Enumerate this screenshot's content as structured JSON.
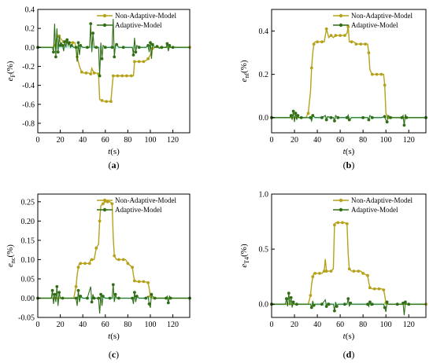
{
  "colors": {
    "non_adaptive": "#b5a21a",
    "adaptive": "#2f6e14",
    "axis": "#000000"
  },
  "chart_data": [
    {
      "type": "line",
      "panel_label": "(a)",
      "ylabel_main": "e",
      "ylabel_sub": "F",
      "ylabel_unit": "(%)",
      "xlabel_main": "t",
      "xlabel_unit": "(s)",
      "xlim": [
        0,
        135
      ],
      "ylim": [
        -0.9,
        0.4
      ],
      "xticks": [
        0,
        20,
        40,
        60,
        80,
        100,
        120
      ],
      "yticks": [
        0.4,
        0.2,
        0.0,
        -0.2,
        -0.4,
        -0.6,
        -0.8
      ],
      "ytick_labels": [
        "0.4",
        "0.2",
        "0.0",
        "-0.2",
        "-0.4",
        "-0.6",
        "-0.8"
      ],
      "legend_position": "top-right",
      "series": [
        {
          "name": "Non-Adaptive-Model",
          "color_key": "non_adaptive",
          "x": [
            0,
            14,
            15,
            17,
            19,
            21,
            23,
            25,
            27,
            29,
            31,
            33,
            35,
            37,
            39,
            41,
            43,
            45,
            47,
            48,
            50,
            52,
            54,
            55,
            57,
            59,
            61,
            63,
            65,
            66,
            67,
            69,
            71,
            73,
            75,
            77,
            79,
            81,
            83,
            85,
            86,
            88,
            90,
            92,
            94,
            96,
            98,
            100,
            102,
            104,
            110,
            120,
            135
          ],
          "y": [
            0,
            0,
            0.02,
            0.1,
            0.12,
            0.08,
            0.06,
            0.06,
            0.05,
            0.05,
            0.05,
            0.05,
            -0.1,
            -0.2,
            -0.26,
            -0.27,
            -0.27,
            -0.27,
            -0.28,
            -0.22,
            -0.27,
            -0.27,
            -0.28,
            -0.55,
            -0.56,
            -0.57,
            -0.57,
            -0.57,
            -0.57,
            -0.42,
            -0.3,
            -0.3,
            -0.3,
            -0.3,
            -0.3,
            -0.3,
            -0.3,
            -0.3,
            -0.3,
            -0.3,
            -0.15,
            -0.15,
            -0.15,
            -0.15,
            -0.15,
            -0.14,
            -0.12,
            -0.08,
            -0.01,
            0,
            0,
            0,
            0
          ]
        },
        {
          "name": "Adaptive-Model",
          "color_key": "adaptive",
          "x": [
            0,
            13,
            14,
            15,
            16,
            17,
            18,
            19,
            20,
            21,
            22,
            23,
            24,
            25,
            26,
            27,
            28,
            29,
            30,
            32,
            34,
            35,
            36,
            37,
            38,
            40,
            44,
            46,
            47,
            48,
            49,
            50,
            52,
            54,
            55,
            56,
            57,
            58,
            60,
            64,
            66,
            67,
            68,
            69,
            70,
            72,
            76,
            84,
            85,
            86,
            87,
            88,
            90,
            96,
            98,
            99,
            100,
            101,
            102,
            104,
            106,
            108,
            110,
            114,
            115,
            116,
            117,
            118,
            120,
            135
          ],
          "y": [
            0,
            0,
            -0.05,
            0.25,
            -0.1,
            0.2,
            -0.05,
            0.12,
            0.02,
            0.05,
            0.02,
            -0.04,
            0.06,
            0,
            0.08,
            0.02,
            0.05,
            0,
            0.02,
            0,
            0,
            -0.15,
            0.05,
            -0.08,
            0.02,
            0,
            0,
            0,
            0.25,
            -0.05,
            0.15,
            0,
            0,
            0,
            -0.3,
            0.05,
            -0.12,
            0.02,
            0,
            0,
            0,
            0.3,
            -0.1,
            0.02,
            0.03,
            0,
            0,
            0,
            -0.08,
            0.1,
            -0.05,
            0.02,
            0,
            0,
            0.02,
            -0.05,
            0.05,
            -0.12,
            0.03,
            0,
            0.01,
            -0.01,
            0,
            0,
            0.04,
            -0.04,
            0.02,
            0,
            0,
            0
          ]
        }
      ]
    },
    {
      "type": "line",
      "panel_label": "(b)",
      "ylabel_main": "e",
      "ylabel_sub": "nf",
      "ylabel_unit": "(%)",
      "xlabel_main": "t",
      "xlabel_unit": "(s)",
      "xlim": [
        0,
        135
      ],
      "ylim": [
        -0.07,
        0.5
      ],
      "xticks": [
        0,
        20,
        40,
        60,
        80,
        100,
        120
      ],
      "yticks": [
        0.4,
        0.2,
        0.0
      ],
      "ytick_labels": [
        "0.4",
        "0.2",
        "0.0"
      ],
      "legend_position": "top-right",
      "series": [
        {
          "name": "Non-Adaptive-Model",
          "color_key": "non_adaptive",
          "x": [
            0,
            30,
            32,
            34,
            35,
            36,
            37,
            38,
            40,
            42,
            44,
            46,
            48,
            50,
            52,
            54,
            56,
            58,
            60,
            62,
            64,
            66,
            67,
            68,
            70,
            72,
            74,
            76,
            78,
            80,
            82,
            84,
            85,
            86,
            88,
            90,
            92,
            94,
            96,
            98,
            99,
            100,
            102,
            135
          ],
          "y": [
            0,
            0,
            0.02,
            0.12,
            0.23,
            0.3,
            0.34,
            0.35,
            0.35,
            0.35,
            0.35,
            0.35,
            0.41,
            0.37,
            0.38,
            0.37,
            0.38,
            0.38,
            0.38,
            0.38,
            0.38,
            0.39,
            0.42,
            0.35,
            0.35,
            0.35,
            0.34,
            0.34,
            0.34,
            0.34,
            0.34,
            0.34,
            0.3,
            0.22,
            0.2,
            0.2,
            0.2,
            0.2,
            0.2,
            0.2,
            0.15,
            0.02,
            0,
            0
          ]
        },
        {
          "name": "Adaptive-Model",
          "color_key": "adaptive",
          "x": [
            0,
            16,
            17,
            18,
            19,
            20,
            21,
            22,
            23,
            24,
            26,
            32,
            34,
            35,
            36,
            38,
            44,
            47,
            48,
            49,
            52,
            54,
            55,
            56,
            58,
            64,
            66,
            67,
            68,
            70,
            80,
            84,
            85,
            86,
            88,
            96,
            99,
            100,
            101,
            102,
            104,
            110,
            114,
            115,
            116,
            117,
            118,
            120,
            135
          ],
          "y": [
            0,
            0,
            0.01,
            -0.01,
            0.03,
            -0.02,
            0.02,
            -0.01,
            0.01,
            0,
            0,
            0,
            0,
            -0.015,
            0.01,
            0,
            0,
            0.01,
            -0.01,
            0.005,
            0,
            0,
            -0.015,
            0.01,
            0,
            0,
            0,
            0.012,
            -0.01,
            0,
            0,
            0,
            -0.01,
            0.01,
            0,
            0,
            0.005,
            -0.012,
            -0.02,
            0.01,
            0,
            0,
            0,
            0.01,
            -0.035,
            0.015,
            0,
            0,
            0
          ]
        }
      ]
    },
    {
      "type": "line",
      "panel_label": "(c)",
      "ylabel_main": "e",
      "ylabel_sub": "nc",
      "ylabel_unit": "(%)",
      "xlabel_main": "t",
      "xlabel_unit": "(s)",
      "xlim": [
        0,
        135
      ],
      "ylim": [
        -0.05,
        0.27
      ],
      "xticks": [
        0,
        20,
        40,
        60,
        80,
        100,
        120
      ],
      "yticks": [
        0.25,
        0.2,
        0.15,
        0.1,
        0.05,
        0.0,
        -0.05
      ],
      "ytick_labels": [
        "0.25",
        "0.20",
        "0.15",
        "0.10",
        "0.05",
        "0.00",
        "-0.05"
      ],
      "legend_position": "top-right",
      "series": [
        {
          "name": "Non-Adaptive-Model",
          "color_key": "non_adaptive",
          "x": [
            0,
            32,
            34,
            35,
            36,
            37,
            38,
            40,
            42,
            44,
            46,
            47,
            48,
            50,
            52,
            54,
            55,
            56,
            58,
            60,
            62,
            64,
            66,
            67,
            68,
            70,
            72,
            74,
            76,
            78,
            80,
            82,
            84,
            85,
            86,
            88,
            90,
            92,
            94,
            96,
            98,
            99,
            100,
            102,
            135
          ],
          "y": [
            0,
            0,
            0.03,
            0.06,
            0.08,
            0.09,
            0.09,
            0.09,
            0.09,
            0.09,
            0.09,
            0.1,
            0.1,
            0.1,
            0.13,
            0.14,
            0.2,
            0.24,
            0.245,
            0.25,
            0.25,
            0.25,
            0.245,
            0.16,
            0.11,
            0.1,
            0.1,
            0.1,
            0.1,
            0.1,
            0.09,
            0.085,
            0.08,
            0.06,
            0.045,
            0.043,
            0.043,
            0.043,
            0.043,
            0.042,
            0.04,
            0.025,
            0.005,
            0,
            0
          ]
        },
        {
          "name": "Adaptive-Model",
          "color_key": "adaptive",
          "x": [
            0,
            12,
            13,
            14,
            15,
            16,
            17,
            18,
            19,
            20,
            22,
            30,
            34,
            35,
            36,
            37,
            38,
            40,
            44,
            47,
            48,
            49,
            50,
            52,
            54,
            55,
            56,
            57,
            58,
            60,
            64,
            66,
            67,
            68,
            69,
            70,
            72,
            80,
            84,
            85,
            86,
            87,
            88,
            90,
            96,
            98,
            99,
            100,
            101,
            102,
            104,
            110,
            114,
            115,
            116,
            117,
            118,
            120,
            135
          ],
          "y": [
            0,
            0,
            0.02,
            -0.015,
            0.01,
            -0.01,
            0.03,
            -0.02,
            0.015,
            0,
            0,
            0,
            0,
            -0.02,
            0.02,
            -0.01,
            0.005,
            0,
            0,
            0.03,
            -0.01,
            0.01,
            0,
            0,
            0,
            -0.04,
            0.01,
            -0.02,
            0.005,
            0,
            0,
            0,
            0.035,
            -0.01,
            0.01,
            0,
            0,
            0,
            0,
            -0.015,
            0.015,
            -0.01,
            0.005,
            0,
            0,
            0.005,
            -0.015,
            -0.025,
            0.01,
            0.005,
            0,
            0,
            0,
            0.005,
            -0.012,
            0.005,
            0,
            0,
            0
          ]
        }
      ]
    },
    {
      "type": "line",
      "panel_label": "(d)",
      "ylabel_main": "e",
      "ylabel_sub": "T4",
      "ylabel_unit": "(%)",
      "xlabel_main": "t",
      "xlabel_unit": "(s)",
      "xlim": [
        0,
        135
      ],
      "ylim": [
        -0.12,
        1.0
      ],
      "xticks": [
        0,
        20,
        40,
        60,
        80,
        100,
        120
      ],
      "yticks": [
        1.0,
        0.5,
        0.0
      ],
      "ytick_labels": [
        "1.0",
        "0.5",
        "0.0"
      ],
      "legend_position": "top-right",
      "series": [
        {
          "name": "Non-Adaptive-Model",
          "color_key": "non_adaptive",
          "x": [
            0,
            32,
            34,
            35,
            36,
            37,
            38,
            40,
            42,
            44,
            46,
            47,
            48,
            50,
            52,
            54,
            55,
            56,
            58,
            60,
            62,
            64,
            66,
            67,
            68,
            70,
            72,
            74,
            76,
            78,
            80,
            82,
            84,
            85,
            86,
            88,
            90,
            92,
            94,
            96,
            98,
            99,
            100,
            102,
            135
          ],
          "y": [
            0,
            0,
            0.08,
            0.18,
            0.25,
            0.28,
            0.28,
            0.28,
            0.28,
            0.28,
            0.3,
            0.41,
            0.3,
            0.3,
            0.3,
            0.32,
            0.72,
            0.74,
            0.74,
            0.74,
            0.74,
            0.74,
            0.73,
            0.45,
            0.32,
            0.3,
            0.3,
            0.3,
            0.3,
            0.3,
            0.28,
            0.27,
            0.26,
            0.2,
            0.15,
            0.14,
            0.14,
            0.14,
            0.14,
            0.14,
            0.13,
            0.08,
            0.01,
            0,
            0
          ]
        },
        {
          "name": "Adaptive-Model",
          "color_key": "adaptive",
          "x": [
            0,
            12,
            13,
            14,
            15,
            16,
            17,
            18,
            19,
            20,
            22,
            34,
            35,
            36,
            37,
            38,
            44,
            47,
            48,
            49,
            50,
            54,
            55,
            56,
            57,
            58,
            64,
            66,
            67,
            68,
            69,
            70,
            84,
            85,
            86,
            87,
            88,
            98,
            99,
            100,
            101,
            102,
            110,
            114,
            115,
            116,
            117,
            118,
            120,
            135
          ],
          "y": [
            0,
            0,
            0.05,
            -0.02,
            0.1,
            -0.01,
            0.06,
            -0.03,
            0.02,
            0,
            0,
            0,
            -0.03,
            0.03,
            -0.01,
            0,
            0,
            0.04,
            -0.02,
            0.01,
            0,
            0,
            -0.06,
            0.02,
            -0.02,
            0,
            0,
            0,
            0.05,
            -0.02,
            0.01,
            0,
            0,
            -0.02,
            0.02,
            -0.01,
            0,
            0,
            -0.03,
            -0.07,
            0.02,
            0,
            0,
            0,
            0.01,
            -0.1,
            0.02,
            0,
            0,
            0
          ]
        }
      ]
    }
  ]
}
